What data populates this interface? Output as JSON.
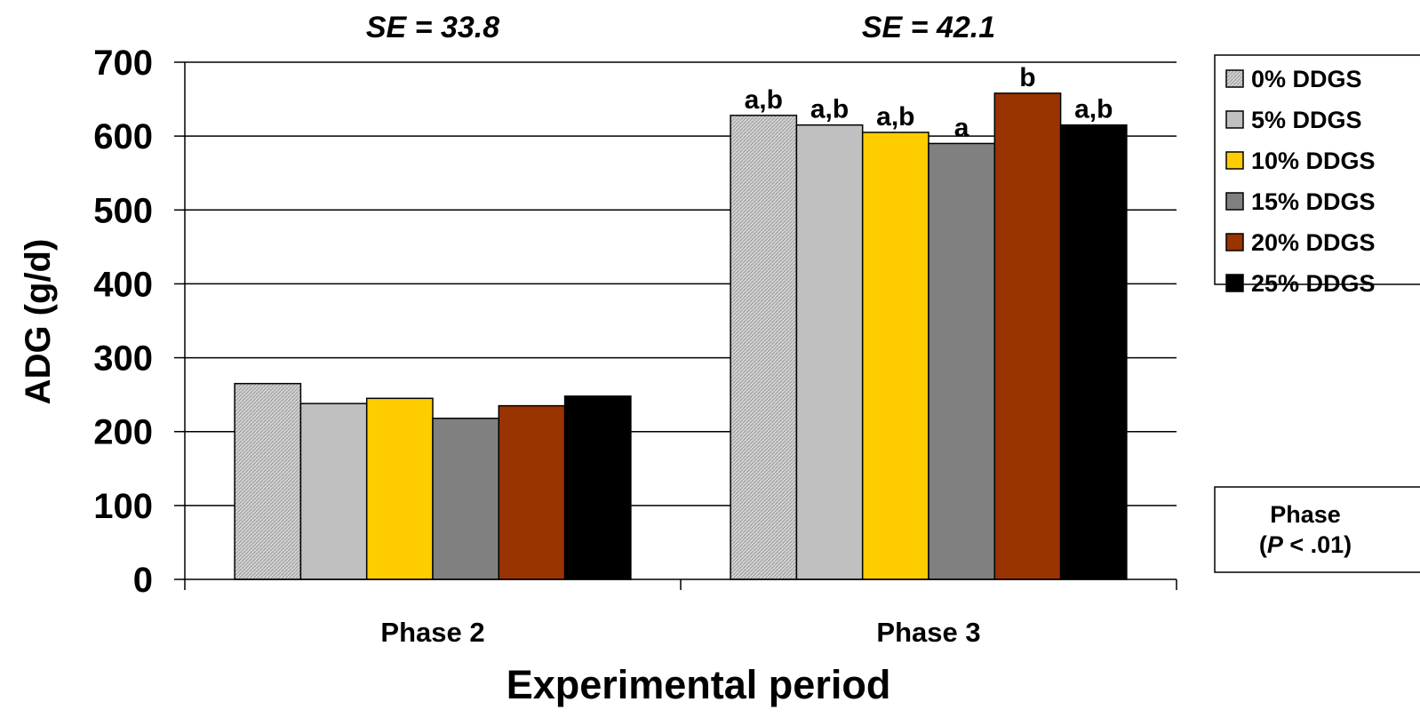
{
  "chart_data": {
    "type": "bar",
    "categories": [
      "Phase 2",
      "Phase 3"
    ],
    "series": [
      {
        "name": "0% DDGS",
        "values": [
          265,
          628
        ],
        "labels": [
          "",
          "a,b"
        ],
        "color": "#c8c8c8",
        "pattern": "hatch"
      },
      {
        "name": "5% DDGS",
        "values": [
          238,
          615
        ],
        "labels": [
          "",
          "a,b"
        ],
        "color": "#c0c0c0"
      },
      {
        "name": "10% DDGS",
        "values": [
          245,
          605
        ],
        "labels": [
          "",
          "a,b"
        ],
        "color": "#ffcc00"
      },
      {
        "name": "15% DDGS",
        "values": [
          218,
          590
        ],
        "labels": [
          "",
          "a"
        ],
        "color": "#808080"
      },
      {
        "name": "20% DDGS",
        "values": [
          235,
          658
        ],
        "labels": [
          "",
          "b"
        ],
        "color": "#993300"
      },
      {
        "name": "25% DDGS",
        "values": [
          248,
          615
        ],
        "labels": [
          "",
          "a,b"
        ],
        "color": "#000000"
      }
    ],
    "se_labels": [
      "SE = 33.8",
      "SE = 42.1"
    ],
    "xlabel": "Experimental period",
    "ylabel": "ADG (g/d)",
    "ylim": [
      0,
      700
    ],
    "yticks": [
      0,
      100,
      200,
      300,
      400,
      500,
      600,
      700
    ],
    "grid": true,
    "legend_position": "right",
    "note": {
      "line1": "Phase",
      "line2_prefix": "(",
      "line2_italic": "P",
      "line2_suffix": " < .01)"
    }
  }
}
